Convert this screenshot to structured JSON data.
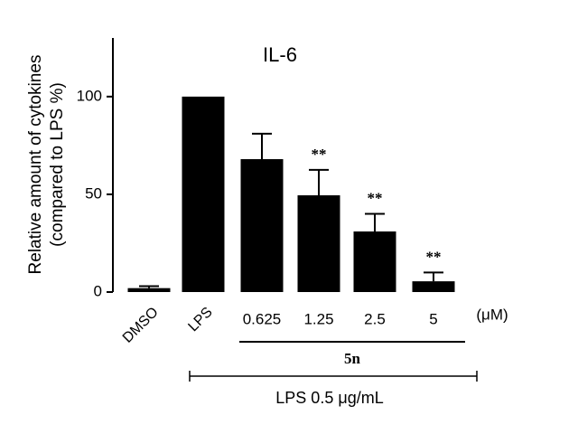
{
  "chart_data": {
    "type": "bar",
    "title": "IL-6",
    "y_label": [
      "Relative amount of  cytokines",
      "(compared to LPS %)"
    ],
    "categories": [
      "DMSO",
      "LPS",
      "0.625",
      "1.25",
      "2.5",
      "5"
    ],
    "values": [
      2,
      100,
      68,
      49.5,
      31,
      5.5
    ],
    "errors": [
      1,
      0,
      13,
      13,
      9,
      4.5
    ],
    "annotations": [
      null,
      null,
      null,
      "**",
      "**",
      "**"
    ],
    "unit_label": "(μM)",
    "group_label": "5n",
    "treatment_label": "LPS 0.5 μg/mL",
    "color": "#000000",
    "ylim": [
      0,
      130
    ],
    "yticks": [
      0,
      50,
      100
    ]
  }
}
